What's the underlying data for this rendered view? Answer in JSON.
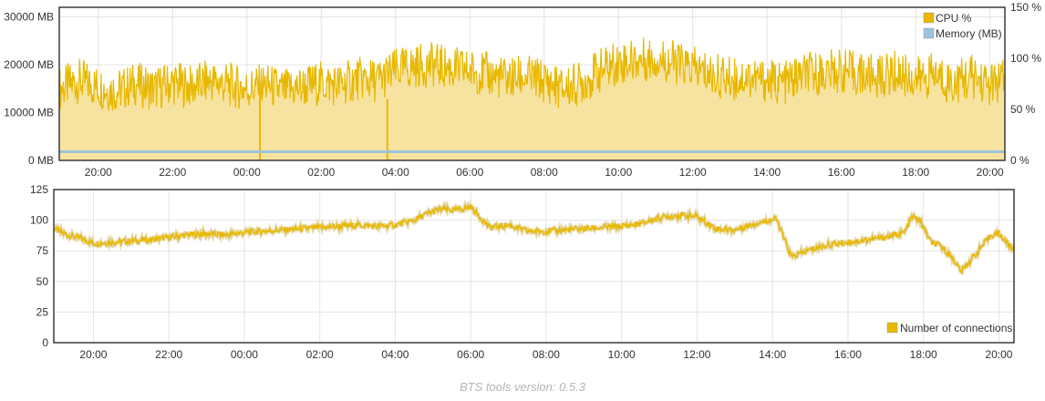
{
  "footer": {
    "version_text": "BTS tools version: 0.5.3"
  },
  "colors": {
    "cpu_line": "#e8b800",
    "cpu_fill": "#f7e3a0",
    "memory_line": "#9cc3dd",
    "connections_line": "#e8b800",
    "grid": "#e4e4e4",
    "frame": "#3a3a3a"
  },
  "chart_data": [
    {
      "type": "area",
      "x_tick_labels": [
        "20:00",
        "22:00",
        "00:00",
        "02:00",
        "04:00",
        "06:00",
        "08:00",
        "10:00",
        "12:00",
        "14:00",
        "16:00",
        "18:00",
        "20:00"
      ],
      "x_range_hours": [
        18.95,
        44.4
      ],
      "y_left_ticks": [
        "0 MB",
        "10000 MB",
        "20000 MB",
        "30000 MB"
      ],
      "y_left_range": [
        0,
        32000
      ],
      "y_right_ticks": [
        "0 %",
        "50 %",
        "100 %",
        "150 %"
      ],
      "y_right_range": [
        0,
        150
      ],
      "grid": true,
      "legend_position": "top-right",
      "series": [
        {
          "name": "CPU %",
          "axis": "right",
          "x_hours": [
            18.95,
            19.5,
            20.0,
            20.5,
            21.0,
            21.5,
            22.0,
            22.5,
            23.0,
            23.5,
            24.0,
            24.5,
            25.0,
            25.5,
            26.0,
            26.5,
            27.0,
            27.5,
            28.0,
            28.5,
            29.0,
            29.5,
            30.0,
            30.5,
            31.0,
            31.5,
            32.0,
            32.5,
            33.0,
            33.5,
            34.0,
            34.5,
            35.0,
            35.5,
            36.0,
            36.5,
            37.0,
            37.5,
            38.0,
            38.5,
            39.0,
            39.5,
            40.0,
            40.5,
            41.0,
            41.5,
            42.0,
            42.5,
            43.0,
            43.5,
            44.0,
            44.4
          ],
          "values": [
            70,
            78,
            72,
            68,
            75,
            70,
            76,
            72,
            78,
            74,
            70,
            74,
            68,
            72,
            76,
            74,
            80,
            78,
            88,
            92,
            94,
            90,
            88,
            84,
            80,
            82,
            78,
            70,
            76,
            88,
            96,
            98,
            100,
            96,
            90,
            84,
            80,
            82,
            78,
            76,
            84,
            86,
            88,
            84,
            82,
            86,
            80,
            84,
            76,
            82,
            74,
            78
          ]
        },
        {
          "name": "Memory (MB)",
          "axis": "left",
          "x_hours": [
            18.95,
            44.4
          ],
          "values": [
            1800,
            1800
          ]
        }
      ]
    },
    {
      "type": "line",
      "x_tick_labels": [
        "20:00",
        "22:00",
        "00:00",
        "02:00",
        "04:00",
        "06:00",
        "08:00",
        "10:00",
        "12:00",
        "14:00",
        "16:00",
        "18:00",
        "20:00"
      ],
      "x_range_hours": [
        18.95,
        44.4
      ],
      "y_ticks": [
        "0",
        "25",
        "50",
        "75",
        "100",
        "125"
      ],
      "y_range": [
        0,
        125
      ],
      "grid": true,
      "legend_position": "bottom-right",
      "series": [
        {
          "name": "Number of connections",
          "x_hours": [
            18.95,
            19.3,
            19.7,
            20.0,
            20.5,
            21.0,
            21.5,
            22.0,
            22.5,
            23.0,
            23.5,
            24.0,
            24.5,
            25.0,
            25.5,
            26.0,
            26.5,
            27.0,
            27.5,
            28.0,
            28.5,
            28.9,
            29.2,
            29.6,
            30.0,
            30.5,
            31.0,
            31.5,
            32.0,
            32.5,
            33.0,
            33.5,
            34.0,
            34.5,
            35.0,
            35.5,
            36.0,
            36.5,
            37.0,
            37.5,
            37.9,
            38.1,
            38.5,
            39.0,
            39.5,
            40.0,
            40.5,
            41.0,
            41.5,
            41.7,
            41.9,
            42.2,
            42.5,
            42.8,
            43.0,
            43.4,
            43.8,
            44.0,
            44.4
          ],
          "values": [
            93,
            88,
            85,
            81,
            82,
            83,
            84,
            86,
            88,
            89,
            88,
            90,
            91,
            92,
            93,
            94,
            95,
            96,
            95,
            96,
            100,
            106,
            109,
            108,
            111,
            94,
            96,
            91,
            91,
            92,
            93,
            94,
            95,
            97,
            102,
            104,
            103,
            93,
            92,
            97,
            100,
            101,
            70,
            76,
            80,
            82,
            84,
            86,
            90,
            103,
            100,
            82,
            78,
            68,
            58,
            73,
            88,
            89,
            75
          ]
        }
      ]
    }
  ]
}
